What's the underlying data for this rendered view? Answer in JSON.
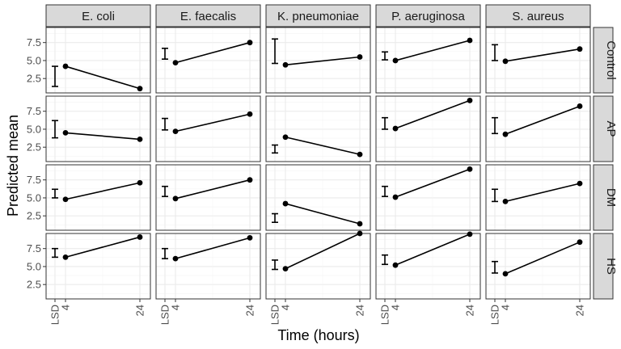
{
  "chart_data": {
    "type": "line",
    "xlabel": "Time (hours)",
    "ylabel": "Predicted mean",
    "x_tick_labels": [
      "LSD",
      "4",
      "24"
    ],
    "y_ticks": [
      2.5,
      5.0,
      7.5
    ],
    "y_tick_labels": [
      "2.5",
      "5.0",
      "7.5"
    ],
    "ylim": [
      0.5,
      9.6
    ],
    "x": [
      4,
      24
    ],
    "organisms": [
      "E. coli",
      "E. faecalis",
      "K. pneumoniae",
      "P. aeruginosa",
      "S. aureus"
    ],
    "treatments": [
      "Control",
      "AP",
      "DM",
      "HS"
    ],
    "grid": true,
    "colors": {
      "strip_fill": "#d9d9d9",
      "strip_border": "#333333",
      "grid": "#ebebeb",
      "line": "#000000"
    },
    "panels": [
      {
        "treatment": "Control",
        "organism": "E. coli",
        "values": [
          4.2,
          1.1
        ],
        "lsd": [
          1.4,
          4.2
        ]
      },
      {
        "treatment": "Control",
        "organism": "E. faecalis",
        "values": [
          4.7,
          7.5
        ],
        "lsd": [
          5.2,
          6.7
        ]
      },
      {
        "treatment": "Control",
        "organism": "K. pneumoniae",
        "values": [
          4.4,
          5.5
        ],
        "lsd": [
          4.6,
          8.0
        ]
      },
      {
        "treatment": "Control",
        "organism": "P. aeruginosa",
        "values": [
          5.0,
          7.8
        ],
        "lsd": [
          5.1,
          6.2
        ]
      },
      {
        "treatment": "Control",
        "organism": "S. aureus",
        "values": [
          4.9,
          6.6
        ],
        "lsd": [
          5.0,
          7.2
        ]
      },
      {
        "treatment": "AP",
        "organism": "E. coli",
        "values": [
          4.5,
          3.6
        ],
        "lsd": [
          3.8,
          6.2
        ]
      },
      {
        "treatment": "AP",
        "organism": "E. faecalis",
        "values": [
          4.7,
          7.1
        ],
        "lsd": [
          4.9,
          6.5
        ]
      },
      {
        "treatment": "AP",
        "organism": "K. pneumoniae",
        "values": [
          3.9,
          1.5
        ],
        "lsd": [
          1.7,
          2.8
        ]
      },
      {
        "treatment": "AP",
        "organism": "P. aeruginosa",
        "values": [
          5.1,
          9.0
        ],
        "lsd": [
          5.0,
          6.6
        ]
      },
      {
        "treatment": "AP",
        "organism": "S. aureus",
        "values": [
          4.3,
          8.2
        ],
        "lsd": [
          4.4,
          6.6
        ]
      },
      {
        "treatment": "DM",
        "organism": "E. coli",
        "values": [
          4.8,
          7.1
        ],
        "lsd": [
          5.0,
          6.2
        ]
      },
      {
        "treatment": "DM",
        "organism": "E. faecalis",
        "values": [
          4.9,
          7.5
        ],
        "lsd": [
          5.2,
          6.6
        ]
      },
      {
        "treatment": "DM",
        "organism": "K. pneumoniae",
        "values": [
          4.2,
          1.4
        ],
        "lsd": [
          1.6,
          2.8
        ]
      },
      {
        "treatment": "DM",
        "organism": "P. aeruginosa",
        "values": [
          5.1,
          9.0
        ],
        "lsd": [
          5.2,
          6.6
        ]
      },
      {
        "treatment": "DM",
        "organism": "S. aureus",
        "values": [
          4.5,
          7.0
        ],
        "lsd": [
          4.5,
          6.2
        ]
      },
      {
        "treatment": "HS",
        "organism": "E. coli",
        "values": [
          6.3,
          9.1
        ],
        "lsd": [
          6.3,
          7.5
        ]
      },
      {
        "treatment": "HS",
        "organism": "E. faecalis",
        "values": [
          6.1,
          9.0
        ],
        "lsd": [
          6.1,
          7.5
        ]
      },
      {
        "treatment": "HS",
        "organism": "K. pneumoniae",
        "values": [
          4.7,
          9.6
        ],
        "lsd": [
          4.6,
          5.9
        ]
      },
      {
        "treatment": "HS",
        "organism": "P. aeruginosa",
        "values": [
          5.2,
          9.5
        ],
        "lsd": [
          5.3,
          6.6
        ]
      },
      {
        "treatment": "HS",
        "organism": "S. aureus",
        "values": [
          4.0,
          8.4
        ],
        "lsd": [
          4.1,
          5.7
        ]
      }
    ]
  }
}
